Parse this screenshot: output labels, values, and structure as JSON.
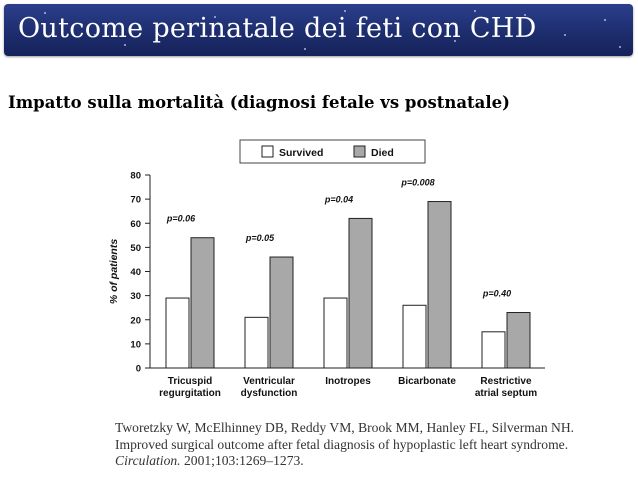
{
  "slide": {
    "title": "Outcome perinatale dei feti con CHD",
    "subtitle": "Impatto sulla mortalità (diagnosi fetale vs postnatale)"
  },
  "citation": {
    "text_before": "Tworetzky W, McElhinney DB, Reddy VM, Brook MM, Hanley FL, Silverman NH. Improved surgical outcome after fetal diagnosis of hypoplastic left heart syndrome. ",
    "journal": "Circulation.",
    "text_after": " 2001;103:1269–1273."
  },
  "colors": {
    "banner": "#1d2d6e",
    "survived": "#ffffff",
    "died": "#a8a8a8"
  },
  "chart_data": {
    "type": "bar",
    "ylabel": "% of patients",
    "xlabel": "",
    "ylim": [
      0,
      80
    ],
    "yticks": [
      0,
      10,
      20,
      30,
      40,
      50,
      60,
      70,
      80
    ],
    "legend_position": "top",
    "categories": [
      [
        "Tricuspid",
        "regurgitation"
      ],
      [
        "Ventricular",
        "dysfunction"
      ],
      [
        "Inotropes"
      ],
      [
        "Bicarbonate"
      ],
      [
        "Restrictive",
        "atrial septum"
      ]
    ],
    "series": [
      {
        "name": "Survived",
        "values": [
          29,
          21,
          29,
          26,
          15
        ]
      },
      {
        "name": "Died",
        "values": [
          54,
          46,
          62,
          69,
          23
        ]
      }
    ],
    "annotations": [
      "p=0.06",
      "p=0.05",
      "p=0.04",
      "p=0.008",
      "p=0.40"
    ]
  }
}
